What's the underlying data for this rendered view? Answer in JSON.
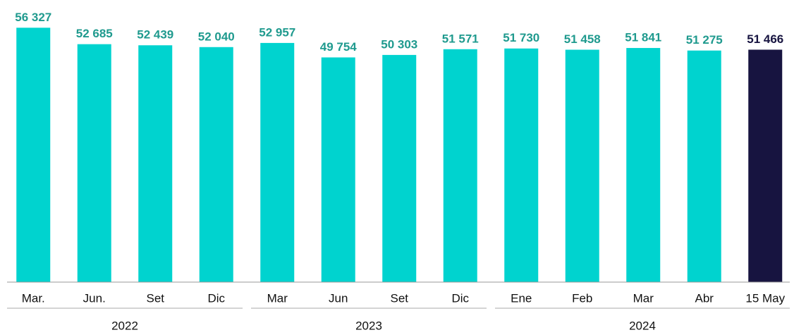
{
  "chart_data": {
    "type": "bar",
    "categories": [
      "Mar.",
      "Jun.",
      "Set",
      "Dic",
      "Mar",
      "Jun",
      "Set",
      "Dic",
      "Ene",
      "Feb",
      "Mar",
      "Abr",
      "15 May"
    ],
    "values": [
      56327,
      52685,
      52439,
      52040,
      52957,
      49754,
      50303,
      51571,
      51730,
      51458,
      51841,
      51275,
      51466
    ],
    "value_labels": [
      "56 327",
      "52 685",
      "52 439",
      "52 040",
      "52 957",
      "49 754",
      "50 303",
      "51 571",
      "51 730",
      "51 458",
      "51 841",
      "51 275",
      "51 466"
    ],
    "colors": [
      "#00d3cf",
      "#00d3cf",
      "#00d3cf",
      "#00d3cf",
      "#00d3cf",
      "#00d3cf",
      "#00d3cf",
      "#00d3cf",
      "#00d3cf",
      "#00d3cf",
      "#00d3cf",
      "#00d3cf",
      "#171440"
    ],
    "label_colors": [
      "#1f9a8e",
      "#1f9a8e",
      "#1f9a8e",
      "#1f9a8e",
      "#1f9a8e",
      "#1f9a8e",
      "#1f9a8e",
      "#1f9a8e",
      "#1f9a8e",
      "#1f9a8e",
      "#1f9a8e",
      "#1f9a8e",
      "#171440"
    ],
    "groups": [
      {
        "name": "2022",
        "first": 0,
        "last": 3
      },
      {
        "name": "2023",
        "first": 4,
        "last": 7
      },
      {
        "name": "2024",
        "first": 8,
        "last": 12
      }
    ],
    "ylim": [
      0,
      62000
    ]
  }
}
